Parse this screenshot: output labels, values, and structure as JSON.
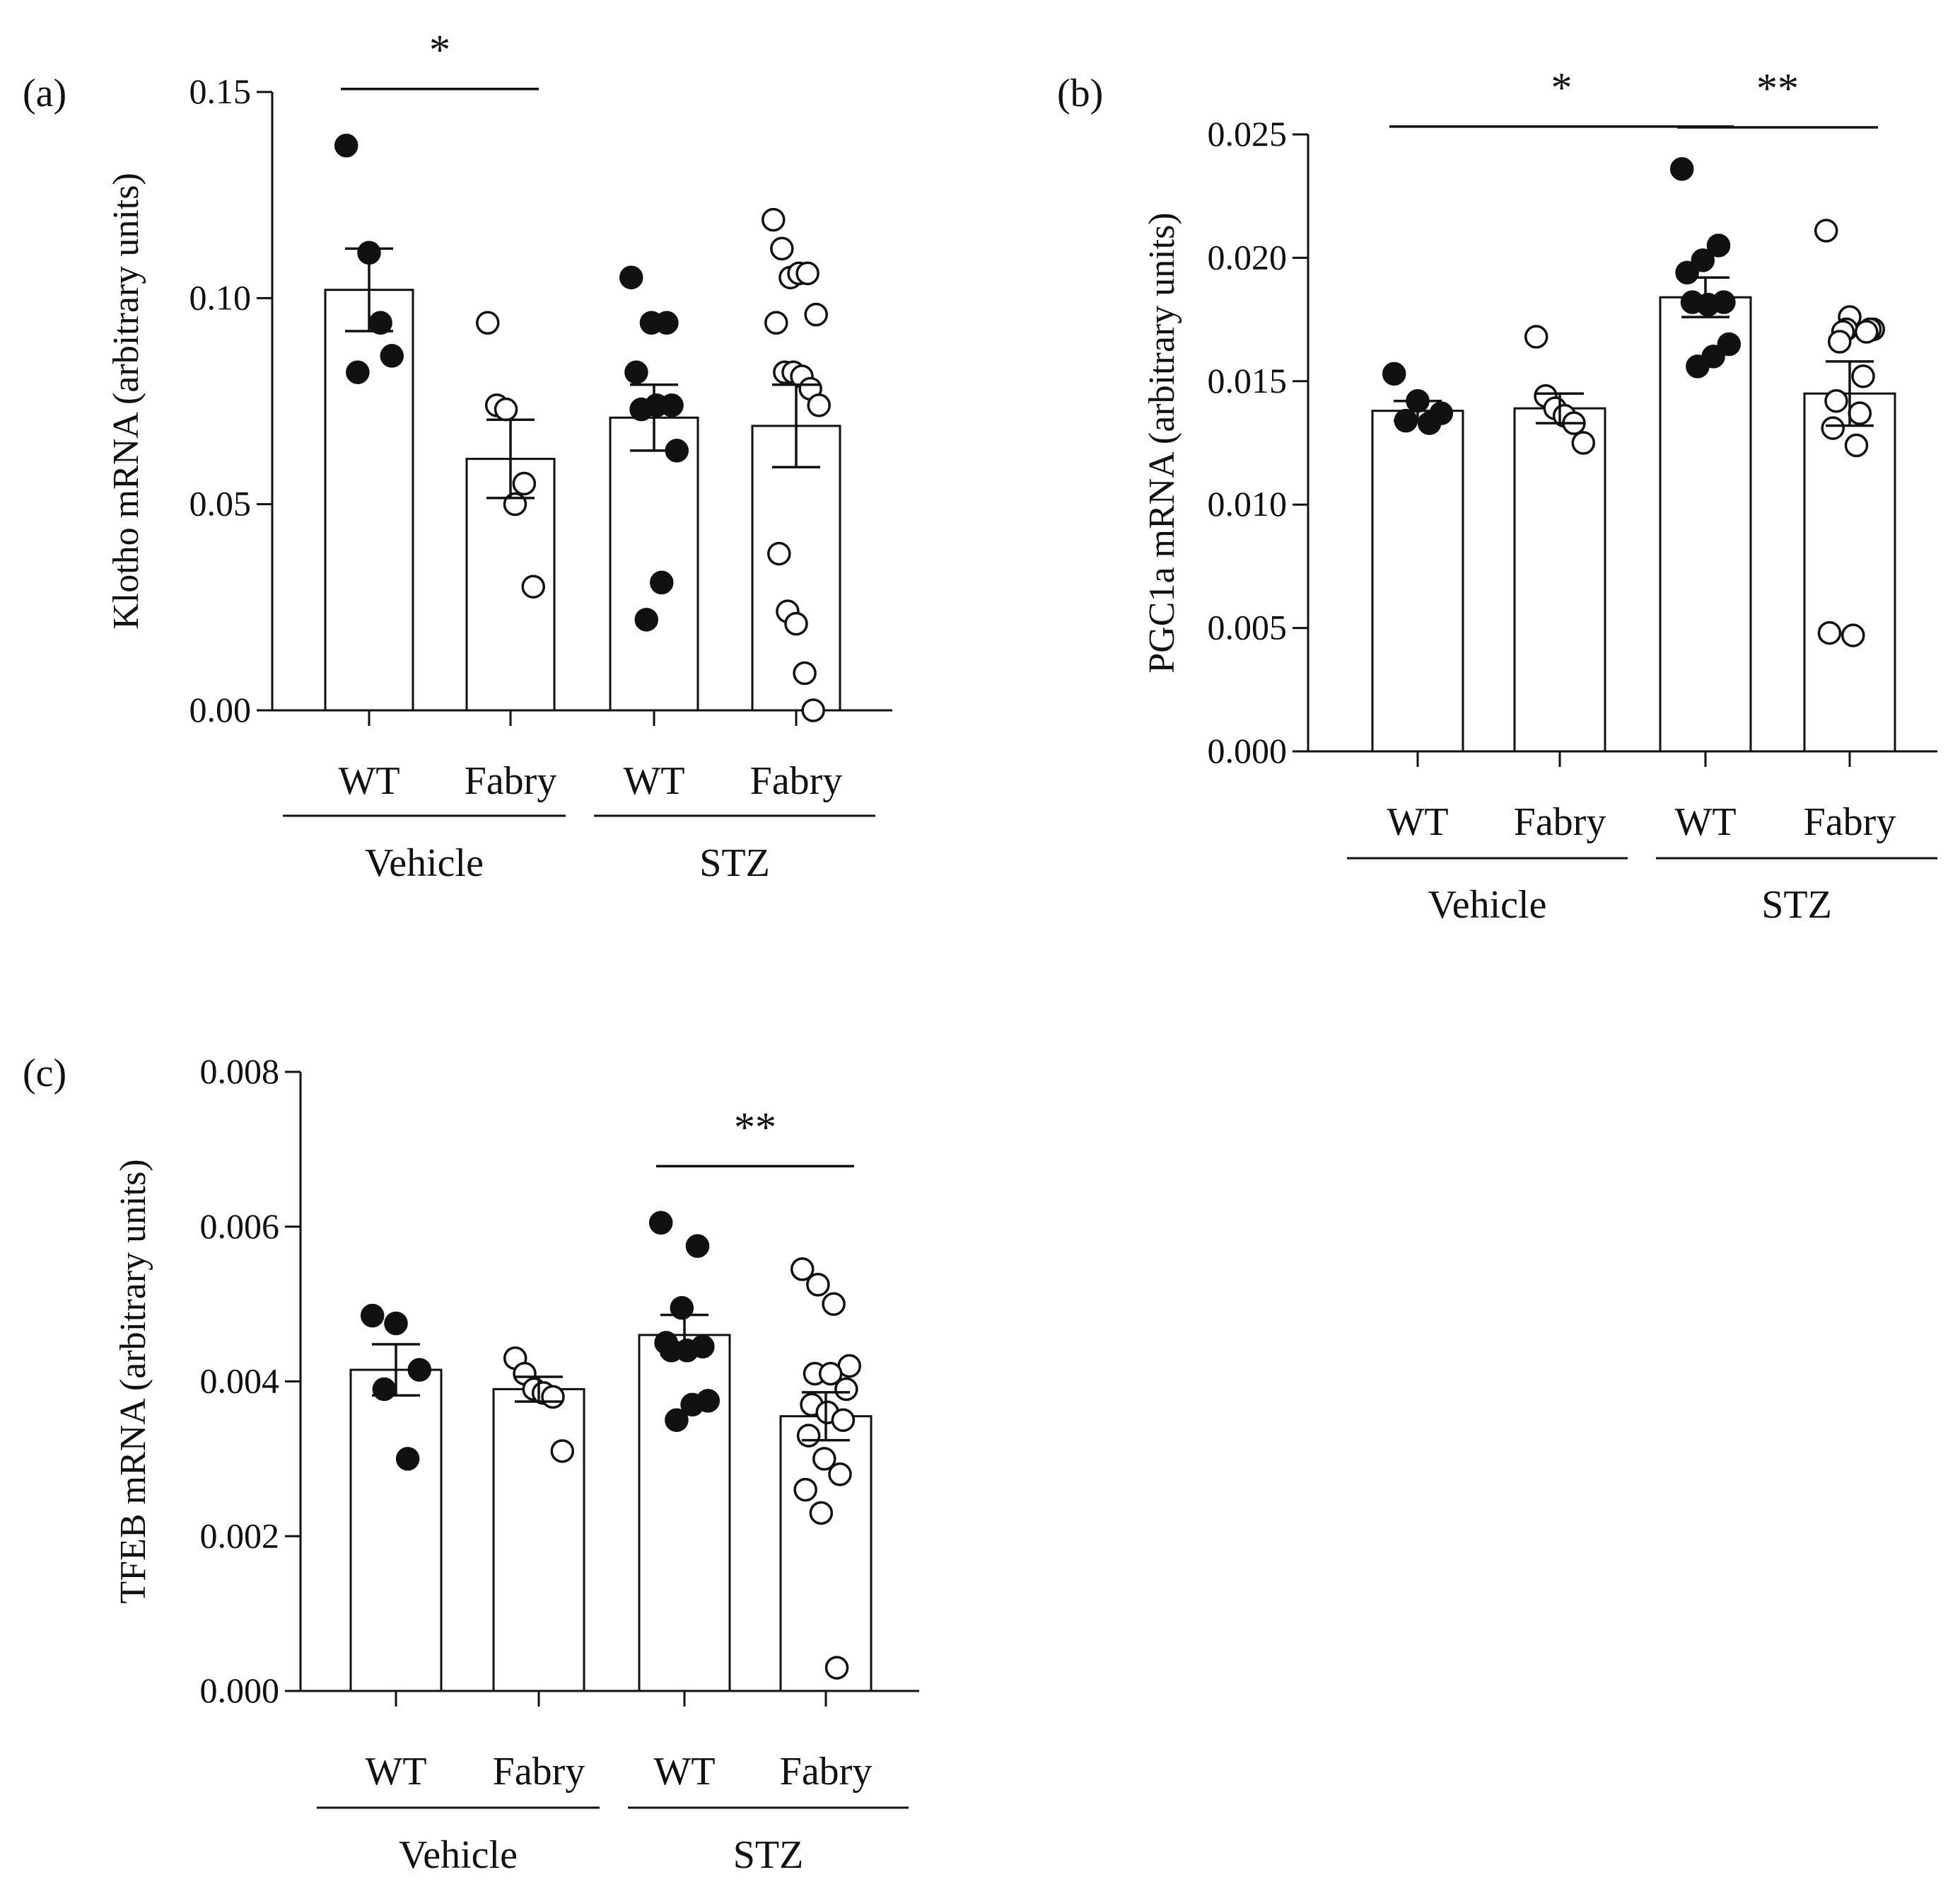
{
  "chart_data": [
    {
      "type": "bar",
      "panel_label": "(a)",
      "ylabel": "Klotho mRNA  (arbitrary units)",
      "ylim": [
        0,
        0.15
      ],
      "yticks": [
        0.0,
        0.05,
        0.1,
        0.15
      ],
      "ytick_labels": [
        "0.00",
        "0.05",
        "0.10",
        "0.15"
      ],
      "categories": [
        "WT",
        "Fabry",
        "WT",
        "Fabry"
      ],
      "groups": [
        {
          "label": "Vehicle",
          "categories": [
            0,
            1
          ]
        },
        {
          "label": "STZ",
          "categories": [
            2,
            3
          ]
        }
      ],
      "bars": [
        {
          "category": "WT",
          "group": "Vehicle",
          "mean": 0.102,
          "sem": 0.01,
          "marker": "filled",
          "points": [
            0.137,
            0.111,
            0.086,
            0.082,
            0.094
          ]
        },
        {
          "category": "Fabry",
          "group": "Vehicle",
          "mean": 0.061,
          "sem": 0.0095,
          "marker": "open",
          "points": [
            0.094,
            0.074,
            0.073,
            0.05,
            0.055,
            0.03
          ]
        },
        {
          "category": "WT",
          "group": "STZ",
          "mean": 0.071,
          "sem": 0.008,
          "marker": "filled",
          "points": [
            0.105,
            0.094,
            0.094,
            0.082,
            0.074,
            0.074,
            0.073,
            0.063,
            0.031,
            0.022
          ]
        },
        {
          "category": "Fabry",
          "group": "STZ",
          "mean": 0.069,
          "sem": 0.01,
          "marker": "open",
          "points": [
            0.119,
            0.112,
            0.105,
            0.106,
            0.106,
            0.096,
            0.094,
            0.082,
            0.082,
            0.081,
            0.078,
            0.074,
            0.038,
            0.024,
            0.021,
            0.009,
            0.0
          ]
        }
      ],
      "significance": [
        {
          "from": 0,
          "to": 1,
          "label": "*"
        }
      ]
    },
    {
      "type": "bar",
      "panel_label": "(b)",
      "ylabel": "PGC1a  mRNA  (arbitrary units)",
      "ylim": [
        0,
        0.025
      ],
      "yticks": [
        0.0,
        0.005,
        0.01,
        0.015,
        0.02,
        0.025
      ],
      "ytick_labels": [
        "0.000",
        "0.005",
        "0.010",
        "0.015",
        "0.020",
        "0.025"
      ],
      "categories": [
        "WT",
        "Fabry",
        "WT",
        "Fabry"
      ],
      "groups": [
        {
          "label": "Vehicle",
          "categories": [
            0,
            1
          ]
        },
        {
          "label": "STZ",
          "categories": [
            2,
            3
          ]
        }
      ],
      "bars": [
        {
          "category": "WT",
          "group": "Vehicle",
          "mean": 0.0138,
          "sem": 0.0004,
          "marker": "filled",
          "points": [
            0.0153,
            0.0142,
            0.0137,
            0.0134,
            0.0133
          ]
        },
        {
          "category": "Fabry",
          "group": "Vehicle",
          "mean": 0.0139,
          "sem": 0.0006,
          "marker": "open",
          "points": [
            0.0168,
            0.0144,
            0.0139,
            0.0136,
            0.0133,
            0.0125
          ]
        },
        {
          "category": "WT",
          "group": "STZ",
          "mean": 0.0184,
          "sem": 0.0008,
          "marker": "filled",
          "points": [
            0.0236,
            0.0205,
            0.0199,
            0.0194,
            0.0182,
            0.0181,
            0.0182,
            0.0165,
            0.016,
            0.0156
          ]
        },
        {
          "category": "Fabry",
          "group": "STZ",
          "mean": 0.0145,
          "sem": 0.0013,
          "marker": "open",
          "points": [
            0.0211,
            0.0176,
            0.0171,
            0.0171,
            0.0171,
            0.017,
            0.017,
            0.0166,
            0.0152,
            0.0142,
            0.0137,
            0.0131,
            0.0124,
            0.0048,
            0.0047
          ]
        }
      ],
      "significance": [
        {
          "from": 0,
          "to": 2,
          "label": "*"
        },
        {
          "from": 2,
          "to": 3,
          "label": "**"
        }
      ]
    },
    {
      "type": "bar",
      "panel_label": "(c)",
      "ylabel": "TFEB mRNA  (arbitrary units)",
      "ylim": [
        0,
        0.008
      ],
      "yticks": [
        0.0,
        0.002,
        0.004,
        0.006,
        0.008
      ],
      "ytick_labels": [
        "0.000",
        "0.002",
        "0.004",
        "0.006",
        "0.008"
      ],
      "categories": [
        "WT",
        "Fabry",
        "WT",
        "Fabry"
      ],
      "groups": [
        {
          "label": "Vehicle",
          "categories": [
            0,
            1
          ]
        },
        {
          "label": "STZ",
          "categories": [
            2,
            3
          ]
        }
      ],
      "bars": [
        {
          "category": "WT",
          "group": "Vehicle",
          "mean": 0.00415,
          "sem": 0.00033,
          "marker": "filled",
          "points": [
            0.00485,
            0.00475,
            0.00415,
            0.0039,
            0.003
          ]
        },
        {
          "category": "Fabry",
          "group": "Vehicle",
          "mean": 0.0039,
          "sem": 0.00016,
          "marker": "open",
          "points": [
            0.0043,
            0.0041,
            0.0039,
            0.00385,
            0.0038,
            0.0031
          ]
        },
        {
          "category": "WT",
          "group": "STZ",
          "mean": 0.0046,
          "sem": 0.00026,
          "marker": "filled",
          "points": [
            0.00605,
            0.00575,
            0.00495,
            0.0045,
            0.00445,
            0.0044,
            0.0044,
            0.00375,
            0.0037,
            0.0035
          ]
        },
        {
          "category": "Fabry",
          "group": "STZ",
          "mean": 0.00355,
          "sem": 0.00031,
          "marker": "open",
          "points": [
            0.00545,
            0.00525,
            0.005,
            0.0042,
            0.0041,
            0.0041,
            0.0039,
            0.0037,
            0.0036,
            0.0035,
            0.0033,
            0.003,
            0.0028,
            0.0026,
            0.0023,
            0.0003
          ]
        }
      ],
      "significance": [
        {
          "from": 2,
          "to": 3,
          "label": "**"
        }
      ]
    }
  ]
}
